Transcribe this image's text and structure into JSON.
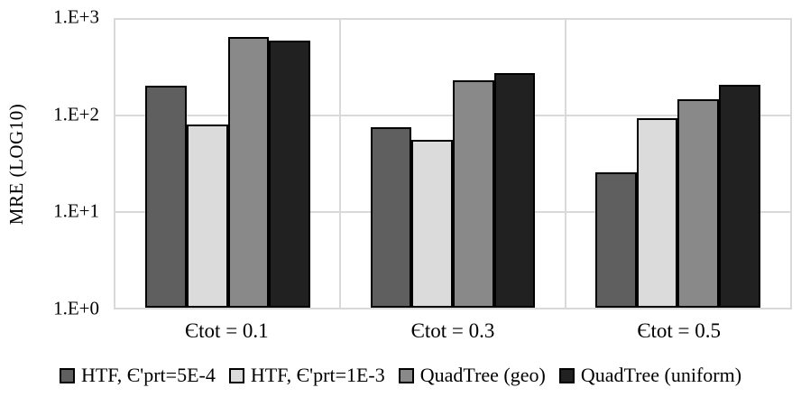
{
  "chart_data": {
    "type": "bar",
    "title": "",
    "ylabel": "MRE (LOG10)",
    "xlabel": "",
    "y_scale": "log10",
    "ylim": [
      1,
      1000
    ],
    "y_ticks_top_to_bottom": [
      "1.E+3",
      "1.E+2",
      "1.E+1",
      "1.E+0"
    ],
    "grid": true,
    "legend_position": "bottom",
    "categories": [
      "Єtot = 0.1",
      "Єtot = 0.3",
      "Єtot = 0.5"
    ],
    "series": [
      {
        "name": "HTF, Є'prt=5E-4",
        "color": "#5F5F5F",
        "values": [
          205,
          76,
          26
        ]
      },
      {
        "name": "HTF, Є'prt=1E-3",
        "color": "#DBDBDB",
        "values": [
          82,
          56,
          95
        ]
      },
      {
        "name": "QuadTree (geo)",
        "color": "#898989",
        "values": [
          670,
          235,
          150
        ]
      },
      {
        "name": "QuadTree (uniform)",
        "color": "#212121",
        "values": [
          610,
          280,
          210
        ]
      }
    ],
    "style": {
      "gridline_color": "#D9D9D9",
      "bar_border_color": "#000000",
      "plot_border_color": "#D9D9D9",
      "background_color": "#FFFFFF"
    }
  }
}
